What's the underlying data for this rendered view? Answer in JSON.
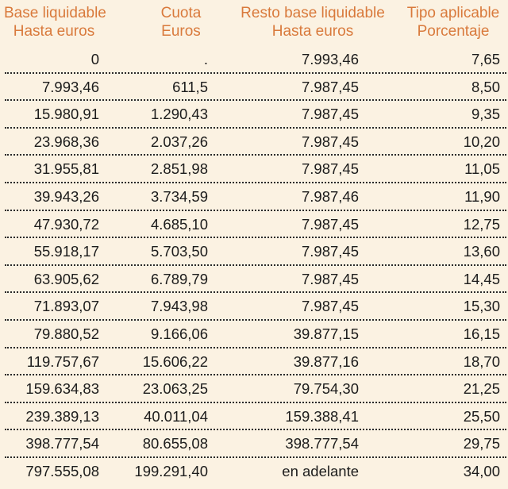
{
  "header": {
    "col1_line1": "Base liquidable",
    "col1_line2": "Hasta euros",
    "col2_line1": "Cuota",
    "col2_line2": "Euros",
    "col3_line1": "Resto base liquidable",
    "col3_line2": "Hasta euros",
    "col4_line1": "Tipo aplicable",
    "col4_line2": "Porcentaje"
  },
  "colors": {
    "background": "#fbf2e2",
    "header_text": "#d97a3c",
    "body_text": "#1c1c1c"
  },
  "rows": [
    [
      "0",
      ".",
      "7.993,46",
      "7,65"
    ],
    [
      "7.993,46",
      "611,5",
      "7.987,45",
      "8,50"
    ],
    [
      "15.980,91",
      "1.290,43",
      "7.987,45",
      "9,35"
    ],
    [
      "23.968,36",
      "2.037,26",
      "7.987,45",
      "10,20"
    ],
    [
      "31.955,81",
      "2.851,98",
      "7.987,45",
      "11,05"
    ],
    [
      "39.943,26",
      "3.734,59",
      "7.987,46",
      "11,90"
    ],
    [
      "47.930,72",
      "4.685,10",
      "7.987,45",
      "12,75"
    ],
    [
      "55.918,17",
      "5.703,50",
      "7.987,45",
      "13,60"
    ],
    [
      "63.905,62",
      "6.789,79",
      "7.987,45",
      "14,45"
    ],
    [
      "71.893,07",
      "7.943,98",
      "7.987,45",
      "15,30"
    ],
    [
      "79.880,52",
      "9.166,06",
      "39.877,15",
      "16,15"
    ],
    [
      "119.757,67",
      "15.606,22",
      "39.877,16",
      "18,70"
    ],
    [
      "159.634,83",
      "23.063,25",
      "79.754,30",
      "21,25"
    ],
    [
      "239.389,13",
      "40.011,04",
      "159.388,41",
      "25,50"
    ],
    [
      "398.777,54",
      "80.655,08",
      "398.777,54",
      "29,75"
    ],
    [
      "797.555,08",
      "199.291,40",
      "en adelante",
      "34,00"
    ]
  ]
}
